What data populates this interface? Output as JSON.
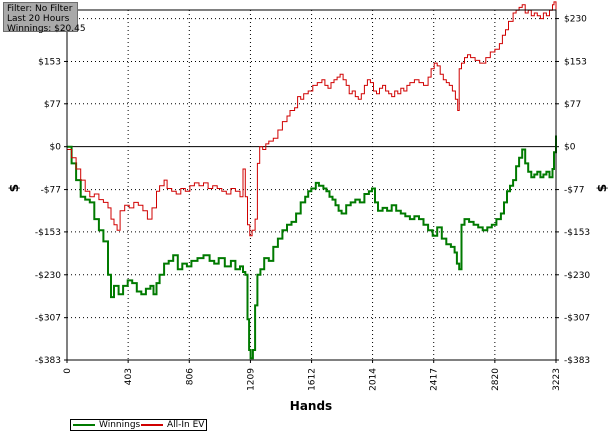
{
  "info_box": {
    "lines": [
      "Filter: No Filter",
      "Last  20 Hours",
      "Winnings: $20.45"
    ]
  },
  "legend": {
    "items": [
      {
        "label": "Winnings",
        "color": "#007a00"
      },
      {
        "label": "All-In EV",
        "color": "#d00000"
      }
    ]
  },
  "chart_data": {
    "type": "line",
    "xlabel": "Hands",
    "ylabel": "$",
    "xlim": [
      0,
      3223
    ],
    "ylim": [
      -383,
      230
    ],
    "x_ticks": [
      0,
      403,
      806,
      1209,
      1612,
      2014,
      2417,
      2820,
      3223
    ],
    "y_ticks": [
      {
        "value": 230,
        "label": "$230"
      },
      {
        "value": 153,
        "label": "$153"
      },
      {
        "value": 77,
        "label": "$77"
      },
      {
        "value": 0,
        "label": "$0"
      },
      {
        "value": -77,
        "label": "-$77"
      },
      {
        "value": -153,
        "label": "-$153"
      },
      {
        "value": -230,
        "label": "-$230"
      },
      {
        "value": -307,
        "label": "-$307"
      },
      {
        "value": -383,
        "label": "-$383"
      }
    ],
    "grid": true,
    "zero_line": true,
    "series": [
      {
        "name": "Winnings",
        "color": "#007a00",
        "points": [
          [
            0,
            0
          ],
          [
            30,
            -30
          ],
          [
            60,
            -60
          ],
          [
            90,
            -90
          ],
          [
            120,
            -95
          ],
          [
            150,
            -100
          ],
          [
            180,
            -130
          ],
          [
            210,
            -150
          ],
          [
            240,
            -170
          ],
          [
            270,
            -230
          ],
          [
            290,
            -270
          ],
          [
            310,
            -250
          ],
          [
            340,
            -265
          ],
          [
            370,
            -250
          ],
          [
            400,
            -240
          ],
          [
            430,
            -245
          ],
          [
            460,
            -260
          ],
          [
            490,
            -265
          ],
          [
            520,
            -255
          ],
          [
            550,
            -250
          ],
          [
            570,
            -265
          ],
          [
            590,
            -245
          ],
          [
            610,
            -230
          ],
          [
            640,
            -210
          ],
          [
            670,
            -205
          ],
          [
            700,
            -195
          ],
          [
            730,
            -220
          ],
          [
            760,
            -210
          ],
          [
            790,
            -215
          ],
          [
            820,
            -205
          ],
          [
            860,
            -200
          ],
          [
            900,
            -195
          ],
          [
            940,
            -205
          ],
          [
            970,
            -210
          ],
          [
            1000,
            -200
          ],
          [
            1040,
            -215
          ],
          [
            1080,
            -205
          ],
          [
            1110,
            -220
          ],
          [
            1140,
            -215
          ],
          [
            1160,
            -225
          ],
          [
            1175,
            -230
          ],
          [
            1190,
            -310
          ],
          [
            1200,
            -365
          ],
          [
            1210,
            -380
          ],
          [
            1225,
            -365
          ],
          [
            1240,
            -285
          ],
          [
            1255,
            -230
          ],
          [
            1275,
            -220
          ],
          [
            1300,
            -200
          ],
          [
            1330,
            -205
          ],
          [
            1360,
            -180
          ],
          [
            1390,
            -165
          ],
          [
            1420,
            -150
          ],
          [
            1450,
            -140
          ],
          [
            1480,
            -135
          ],
          [
            1510,
            -120
          ],
          [
            1540,
            -100
          ],
          [
            1570,
            -90
          ],
          [
            1590,
            -80
          ],
          [
            1610,
            -75
          ],
          [
            1640,
            -65
          ],
          [
            1660,
            -70
          ],
          [
            1690,
            -75
          ],
          [
            1710,
            -80
          ],
          [
            1730,
            -90
          ],
          [
            1750,
            -95
          ],
          [
            1770,
            -105
          ],
          [
            1790,
            -115
          ],
          [
            1810,
            -120
          ],
          [
            1840,
            -105
          ],
          [
            1870,
            -100
          ],
          [
            1900,
            -95
          ],
          [
            1930,
            -100
          ],
          [
            1960,
            -85
          ],
          [
            1990,
            -80
          ],
          [
            2010,
            -75
          ],
          [
            2030,
            -100
          ],
          [
            2050,
            -115
          ],
          [
            2080,
            -110
          ],
          [
            2110,
            -115
          ],
          [
            2140,
            -105
          ],
          [
            2170,
            -115
          ],
          [
            2200,
            -120
          ],
          [
            2230,
            -125
          ],
          [
            2260,
            -130
          ],
          [
            2290,
            -125
          ],
          [
            2320,
            -130
          ],
          [
            2350,
            -140
          ],
          [
            2380,
            -150
          ],
          [
            2410,
            -160
          ],
          [
            2440,
            -145
          ],
          [
            2470,
            -165
          ],
          [
            2500,
            -175
          ],
          [
            2530,
            -180
          ],
          [
            2555,
            -190
          ],
          [
            2570,
            -210
          ],
          [
            2585,
            -220
          ],
          [
            2600,
            -140
          ],
          [
            2620,
            -130
          ],
          [
            2650,
            -135
          ],
          [
            2680,
            -140
          ],
          [
            2710,
            -145
          ],
          [
            2740,
            -150
          ],
          [
            2770,
            -145
          ],
          [
            2800,
            -140
          ],
          [
            2830,
            -130
          ],
          [
            2860,
            -120
          ],
          [
            2880,
            -100
          ],
          [
            2900,
            -80
          ],
          [
            2920,
            -70
          ],
          [
            2940,
            -60
          ],
          [
            2960,
            -35
          ],
          [
            2980,
            -20
          ],
          [
            3000,
            -5
          ],
          [
            3020,
            -30
          ],
          [
            3040,
            -45
          ],
          [
            3060,
            -55
          ],
          [
            3080,
            -50
          ],
          [
            3100,
            -45
          ],
          [
            3120,
            -55
          ],
          [
            3140,
            -50
          ],
          [
            3160,
            -45
          ],
          [
            3180,
            -55
          ],
          [
            3200,
            -40
          ],
          [
            3210,
            -10
          ],
          [
            3223,
            20
          ]
        ]
      },
      {
        "name": "All-In EV",
        "color": "#d00000",
        "points": [
          [
            0,
            -5
          ],
          [
            30,
            -20
          ],
          [
            60,
            -40
          ],
          [
            90,
            -60
          ],
          [
            120,
            -80
          ],
          [
            150,
            -90
          ],
          [
            180,
            -85
          ],
          [
            210,
            -95
          ],
          [
            240,
            -100
          ],
          [
            270,
            -110
          ],
          [
            290,
            -130
          ],
          [
            310,
            -140
          ],
          [
            330,
            -150
          ],
          [
            350,
            -115
          ],
          [
            380,
            -105
          ],
          [
            410,
            -110
          ],
          [
            440,
            -100
          ],
          [
            470,
            -105
          ],
          [
            500,
            -115
          ],
          [
            530,
            -130
          ],
          [
            560,
            -110
          ],
          [
            590,
            -80
          ],
          [
            610,
            -70
          ],
          [
            640,
            -60
          ],
          [
            660,
            -75
          ],
          [
            690,
            -80
          ],
          [
            720,
            -85
          ],
          [
            750,
            -75
          ],
          [
            780,
            -80
          ],
          [
            810,
            -70
          ],
          [
            840,
            -65
          ],
          [
            870,
            -70
          ],
          [
            900,
            -65
          ],
          [
            930,
            -75
          ],
          [
            960,
            -70
          ],
          [
            990,
            -75
          ],
          [
            1020,
            -80
          ],
          [
            1050,
            -85
          ],
          [
            1080,
            -75
          ],
          [
            1110,
            -80
          ],
          [
            1140,
            -90
          ],
          [
            1160,
            -40
          ],
          [
            1175,
            -90
          ],
          [
            1190,
            -140
          ],
          [
            1205,
            -160
          ],
          [
            1220,
            -150
          ],
          [
            1240,
            -130
          ],
          [
            1255,
            -30
          ],
          [
            1270,
            0
          ],
          [
            1290,
            -5
          ],
          [
            1310,
            5
          ],
          [
            1330,
            10
          ],
          [
            1360,
            15
          ],
          [
            1390,
            30
          ],
          [
            1420,
            45
          ],
          [
            1450,
            55
          ],
          [
            1470,
            65
          ],
          [
            1500,
            70
          ],
          [
            1520,
            90
          ],
          [
            1540,
            85
          ],
          [
            1560,
            95
          ],
          [
            1590,
            100
          ],
          [
            1620,
            110
          ],
          [
            1650,
            115
          ],
          [
            1680,
            120
          ],
          [
            1700,
            110
          ],
          [
            1720,
            105
          ],
          [
            1740,
            115
          ],
          [
            1760,
            120
          ],
          [
            1780,
            125
          ],
          [
            1800,
            130
          ],
          [
            1820,
            120
          ],
          [
            1840,
            110
          ],
          [
            1860,
            95
          ],
          [
            1880,
            100
          ],
          [
            1900,
            90
          ],
          [
            1920,
            85
          ],
          [
            1940,
            95
          ],
          [
            1960,
            110
          ],
          [
            1980,
            120
          ],
          [
            2000,
            115
          ],
          [
            2020,
            100
          ],
          [
            2040,
            95
          ],
          [
            2060,
            105
          ],
          [
            2080,
            110
          ],
          [
            2100,
            100
          ],
          [
            2120,
            95
          ],
          [
            2140,
            90
          ],
          [
            2160,
            100
          ],
          [
            2180,
            95
          ],
          [
            2200,
            105
          ],
          [
            2220,
            100
          ],
          [
            2240,
            110
          ],
          [
            2260,
            115
          ],
          [
            2290,
            120
          ],
          [
            2320,
            115
          ],
          [
            2350,
            110
          ],
          [
            2380,
            125
          ],
          [
            2400,
            140
          ],
          [
            2420,
            150
          ],
          [
            2440,
            145
          ],
          [
            2460,
            130
          ],
          [
            2480,
            120
          ],
          [
            2500,
            115
          ],
          [
            2520,
            110
          ],
          [
            2540,
            100
          ],
          [
            2560,
            85
          ],
          [
            2575,
            65
          ],
          [
            2585,
            140
          ],
          [
            2600,
            150
          ],
          [
            2620,
            160
          ],
          [
            2640,
            165
          ],
          [
            2660,
            160
          ],
          [
            2690,
            155
          ],
          [
            2720,
            150
          ],
          [
            2760,
            160
          ],
          [
            2790,
            170
          ],
          [
            2820,
            175
          ],
          [
            2850,
            185
          ],
          [
            2870,
            200
          ],
          [
            2890,
            210
          ],
          [
            2910,
            225
          ],
          [
            2940,
            240
          ],
          [
            2960,
            245
          ],
          [
            2980,
            250
          ],
          [
            3000,
            255
          ],
          [
            3020,
            240
          ],
          [
            3040,
            245
          ],
          [
            3060,
            235
          ],
          [
            3080,
            240
          ],
          [
            3100,
            235
          ],
          [
            3120,
            230
          ],
          [
            3140,
            240
          ],
          [
            3160,
            235
          ],
          [
            3180,
            245
          ],
          [
            3200,
            255
          ],
          [
            3210,
            260
          ],
          [
            3223,
            245
          ]
        ]
      }
    ]
  }
}
